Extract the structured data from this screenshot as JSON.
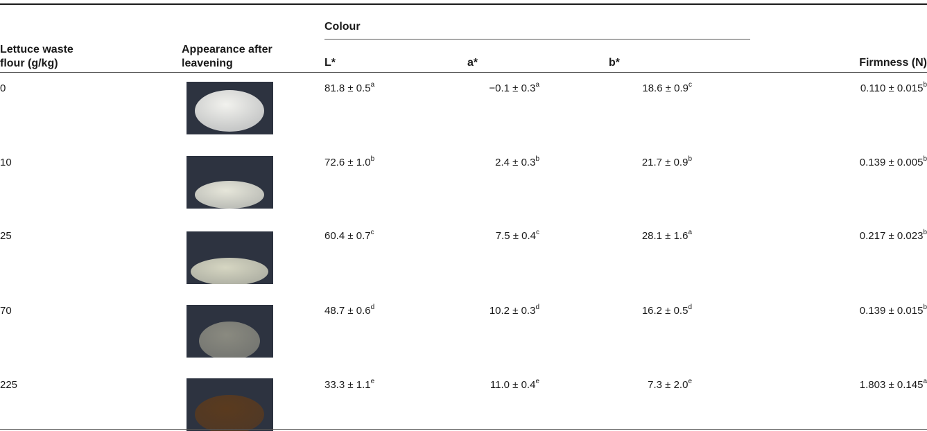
{
  "headers": {
    "lettuce_line1": "Lettuce waste",
    "lettuce_line2": "flour (g/kg)",
    "appearance_line1": "Appearance after",
    "appearance_line2": "leavening",
    "colour": "Colour",
    "l": "L*",
    "a": "a*",
    "b": "b*",
    "firmness": "Firmness (N)"
  },
  "rows": [
    {
      "flour": "0",
      "L": "81.8 ± 0.5",
      "L_sup": "a",
      "a": "−0.1 ± 0.3",
      "a_sup": "a",
      "b": "18.6 ± 0.9",
      "b_sup": "c",
      "firmness": "0.110 ± 0.015",
      "firmness_sup": "b",
      "dough_color": "#f2f2ee"
    },
    {
      "flour": "10",
      "L": "72.6 ± 1.0",
      "L_sup": "b",
      "a": "2.4 ± 0.3",
      "a_sup": "b",
      "b": "21.7 ± 0.9",
      "b_sup": "b",
      "firmness": "0.139 ± 0.005",
      "firmness_sup": "b",
      "dough_color": "#e6e6da"
    },
    {
      "flour": "25",
      "L": "60.4 ± 0.7",
      "L_sup": "c",
      "a": "7.5 ± 0.4",
      "a_sup": "c",
      "b": "28.1 ± 1.6",
      "b_sup": "a",
      "firmness": "0.217 ± 0.023",
      "firmness_sup": "b",
      "dough_color": "#d6d6c2"
    },
    {
      "flour": "70",
      "L": "48.7 ± 0.6",
      "L_sup": "d",
      "a": "10.2 ± 0.3",
      "a_sup": "d",
      "b": "16.2 ± 0.5",
      "b_sup": "d",
      "firmness": "0.139 ± 0.015",
      "firmness_sup": "b",
      "dough_color": "#8a8a80"
    },
    {
      "flour": "225",
      "L": "33.3 ± 1.1",
      "L_sup": "e",
      "a": "11.0 ± 0.4",
      "a_sup": "e",
      "b": "7.3 ± 2.0",
      "b_sup": "e",
      "firmness": "1.803 ± 0.145",
      "firmness_sup": "a",
      "dough_color": "#5a3a1e"
    }
  ]
}
